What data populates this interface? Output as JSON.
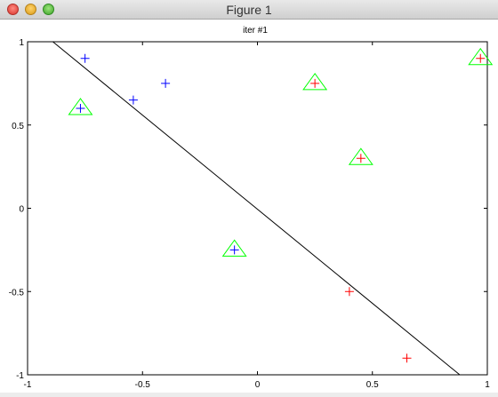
{
  "window": {
    "title": "Figure 1"
  },
  "chart_data": {
    "type": "scatter",
    "title": "iter #1",
    "xlabel": "",
    "ylabel": "",
    "xlim": [
      -1,
      1
    ],
    "ylim": [
      -1,
      1
    ],
    "xticks": [
      "-1",
      "-0.5",
      "0",
      "0.5",
      "1"
    ],
    "yticks": [
      "-1",
      "-0.5",
      "0",
      "0.5",
      "1"
    ],
    "grid": false,
    "series": [
      {
        "marker": "plus",
        "color": "#0000ff",
        "points": [
          {
            "x": -0.75,
            "y": 0.9
          },
          {
            "x": -0.54,
            "y": 0.65
          },
          {
            "x": -0.4,
            "y": 0.75
          },
          {
            "x": -0.77,
            "y": 0.6
          },
          {
            "x": -0.1,
            "y": -0.25
          }
        ]
      },
      {
        "marker": "plus",
        "color": "#ff0000",
        "points": [
          {
            "x": 0.25,
            "y": 0.75
          },
          {
            "x": 0.45,
            "y": 0.3
          },
          {
            "x": 0.97,
            "y": 0.9
          },
          {
            "x": 0.4,
            "y": -0.5
          },
          {
            "x": 0.65,
            "y": -0.9
          }
        ]
      },
      {
        "marker": "triangle",
        "color": "#00ff00",
        "points": [
          {
            "x": -0.77,
            "y": 0.6
          },
          {
            "x": 0.25,
            "y": 0.75
          },
          {
            "x": 0.45,
            "y": 0.3
          },
          {
            "x": 0.97,
            "y": 0.9
          },
          {
            "x": -0.1,
            "y": -0.25
          }
        ]
      }
    ],
    "decision_line": {
      "color": "#000000",
      "x": [
        -0.89,
        0.88
      ],
      "y": [
        1.0,
        -1.0
      ]
    }
  }
}
